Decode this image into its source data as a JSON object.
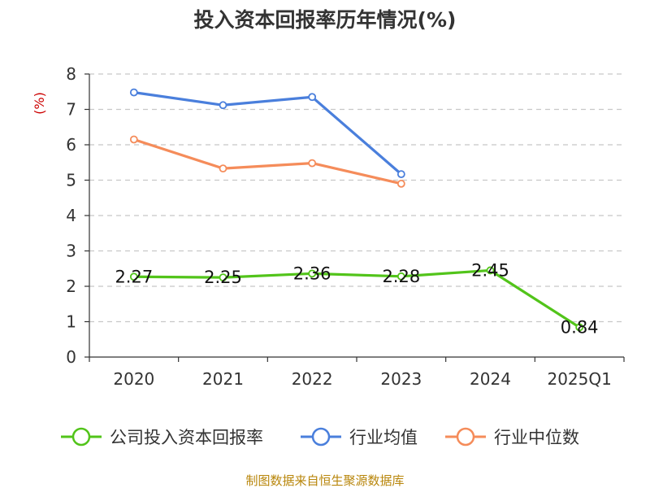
{
  "chart_data": {
    "type": "line",
    "title": "投入资本回报率历年情况(%)",
    "ylabel": "(%)",
    "xlabel": "",
    "categories": [
      "2020",
      "2021",
      "2022",
      "2023",
      "2024",
      "2025Q1"
    ],
    "ylim": [
      0,
      8
    ],
    "yticks": [
      0,
      1,
      2,
      3,
      4,
      5,
      6,
      7,
      8
    ],
    "grid": true,
    "legend_position": "bottom",
    "series": [
      {
        "name": "公司投入资本回报率",
        "color": "#52c41a",
        "values": [
          2.27,
          2.25,
          2.36,
          2.28,
          2.45,
          0.84
        ],
        "labels": [
          "2.27",
          "2.25",
          "2.36",
          "2.28",
          "2.45",
          "0.84"
        ]
      },
      {
        "name": "行业均值",
        "color": "#4a7fdc",
        "values": [
          7.48,
          7.12,
          7.35,
          5.17,
          null,
          null
        ]
      },
      {
        "name": "行业中位数",
        "color": "#f58c5a",
        "values": [
          6.15,
          5.33,
          5.48,
          4.9,
          null,
          null
        ]
      }
    ]
  },
  "source": "制图数据来自恒生聚源数据库"
}
